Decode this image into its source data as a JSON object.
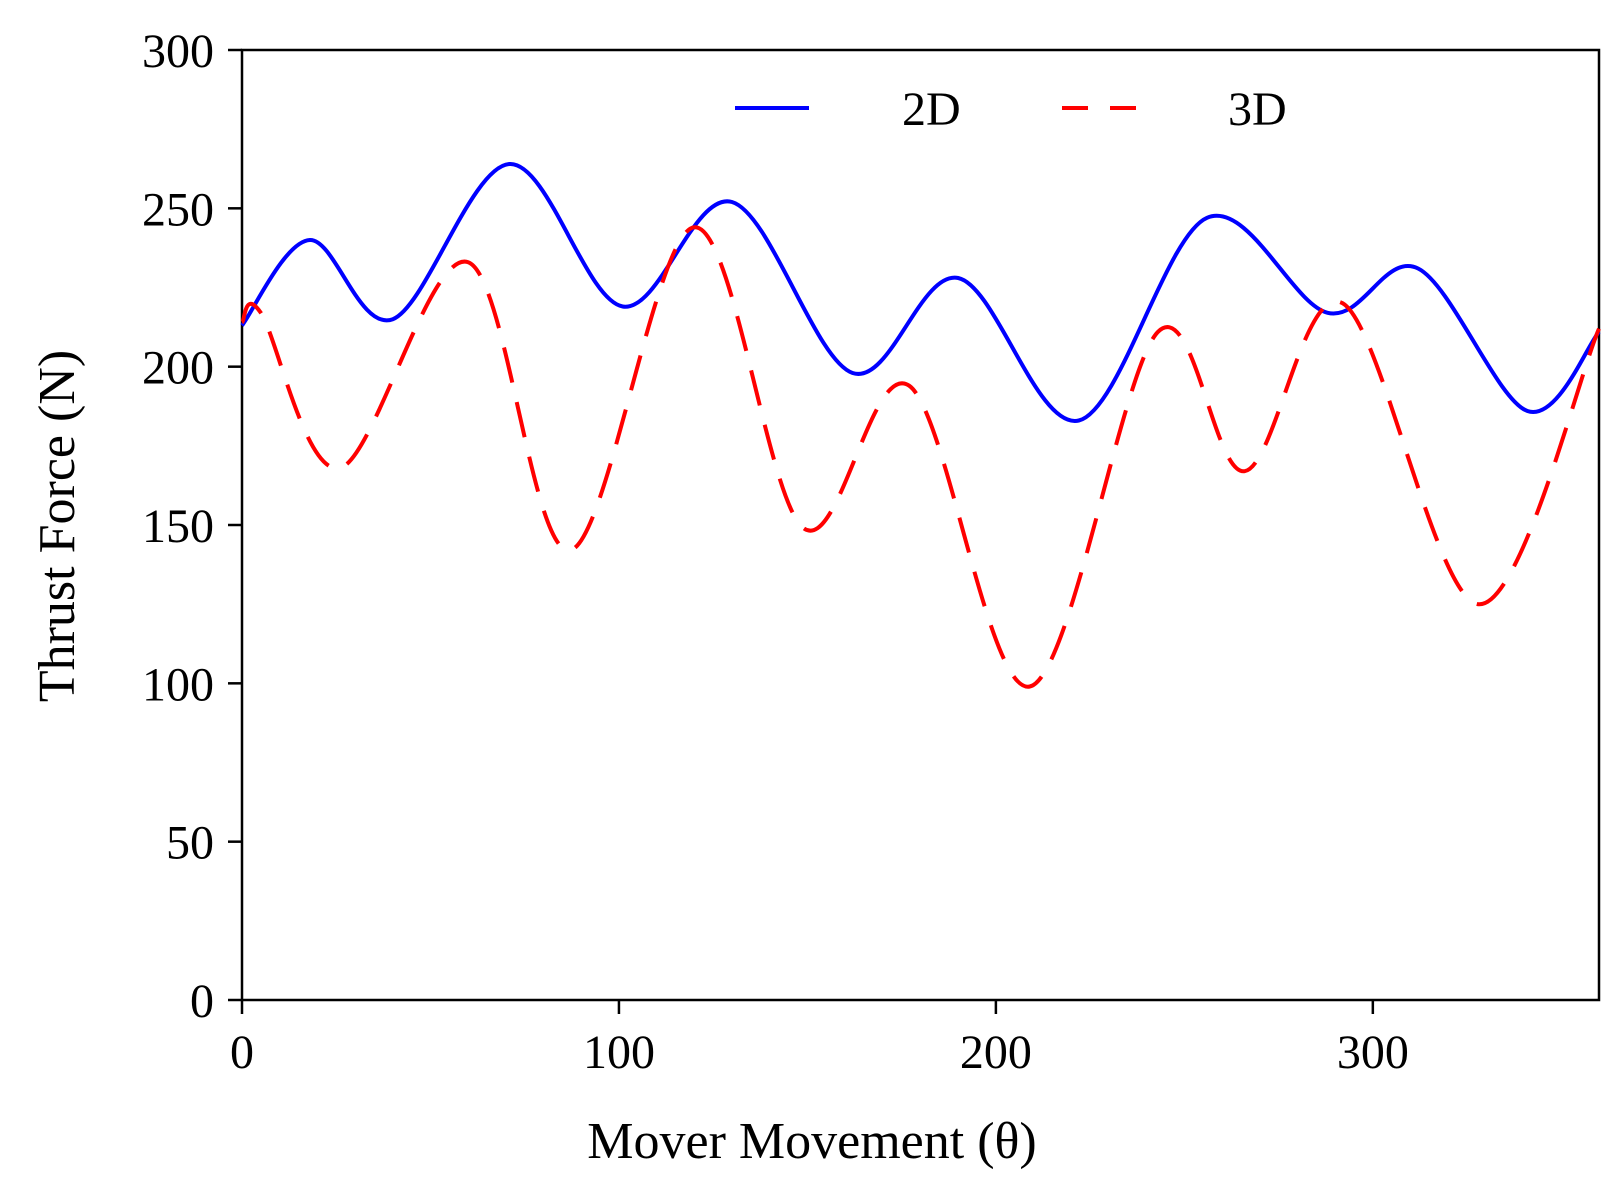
{
  "chart_data": {
    "type": "line",
    "title": "",
    "xlabel": "Mover Movement (θ)",
    "ylabel": "Thrust Force (N)",
    "xlim": [
      0,
      360
    ],
    "ylim": [
      0,
      300
    ],
    "xticks": [
      0,
      100,
      200,
      300
    ],
    "yticks": [
      0,
      50,
      100,
      150,
      200,
      250,
      300
    ],
    "grid": false,
    "legend_position": "top",
    "series": [
      {
        "name": "2D",
        "color": "#0000ff",
        "style": "solid",
        "x": [
          0,
          18,
          40,
          71,
          101,
          130,
          162,
          190,
          222,
          256,
          288,
          312,
          341,
          360
        ],
        "y": [
          213,
          240,
          215,
          264,
          219,
          252,
          198,
          228,
          183,
          247,
          217,
          231,
          186,
          211
        ]
      },
      {
        "name": "3D",
        "color": "#ff0000",
        "style": "dashed",
        "x": [
          0,
          5,
          26,
          60,
          87,
          120,
          149,
          177,
          209,
          243,
          266,
          292,
          328,
          360
        ],
        "y": [
          214,
          217,
          168,
          233,
          142,
          244,
          149,
          194,
          99,
          211,
          167,
          220,
          125,
          212
        ]
      }
    ]
  }
}
